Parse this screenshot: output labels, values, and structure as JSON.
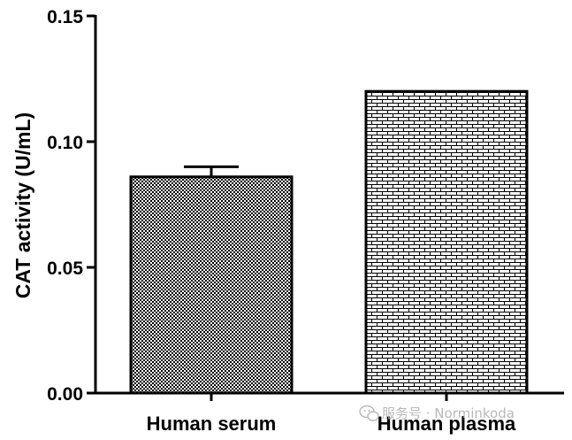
{
  "chart_data": {
    "type": "bar",
    "title": "",
    "xlabel": "",
    "ylabel": "CAT activity (U/mL)",
    "categories": [
      "Human serum",
      "Human plasma"
    ],
    "values": [
      0.086,
      0.12
    ],
    "error": [
      0.004,
      null
    ],
    "ylim": [
      0,
      0.15
    ],
    "yticks": [
      0.0,
      0.05,
      0.1,
      0.15
    ],
    "ytick_labels": [
      "0.00",
      "0.05",
      "0.10",
      "0.15"
    ],
    "bar_patterns": [
      "checker",
      "brick"
    ],
    "grid": false,
    "legend": "none"
  },
  "watermark": {
    "text": "服务号 · Norminkoda",
    "icon": "wechat-icon"
  },
  "colors": {
    "ink": "#000000",
    "watermark": "#b9b9b9"
  }
}
